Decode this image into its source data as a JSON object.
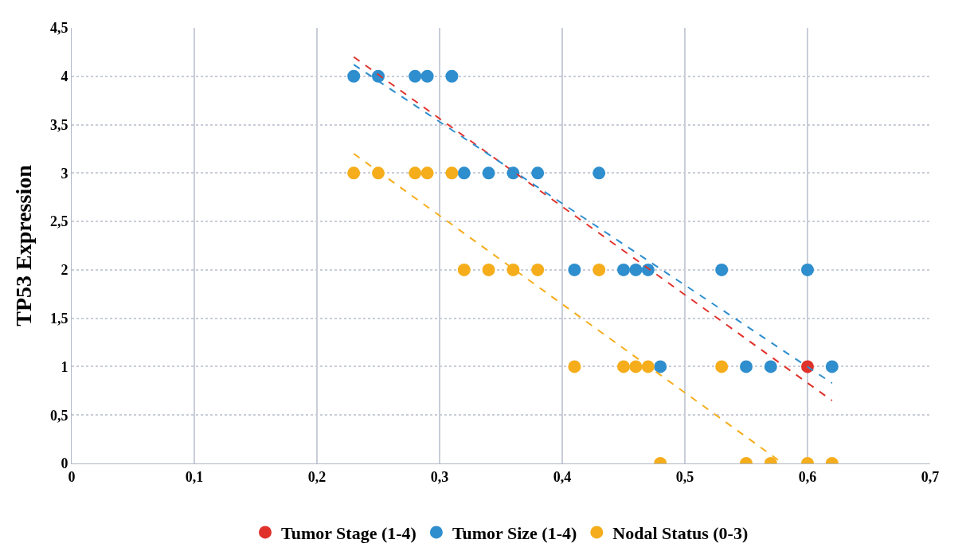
{
  "chart_data": {
    "type": "scatter",
    "ylabel": "TP53 Expression",
    "marker": "circle",
    "grid": true,
    "legend": "bottom",
    "xlim": [
      0,
      0.7
    ],
    "xticks": [
      0,
      {
        "value": 0.1,
        "label": "0,1"
      },
      {
        "value": 0.2,
        "label": "0,2"
      },
      {
        "value": 0.3,
        "label": "0,3"
      },
      {
        "value": 0.4,
        "label": "0,4"
      },
      {
        "value": 0.5,
        "label": "0,5"
      },
      {
        "value": 0.6,
        "label": "0,6"
      },
      {
        "value": 0.7,
        "label": "0,7"
      }
    ],
    "ylim": [
      0,
      4.5
    ],
    "yticks": [
      0,
      {
        "value": 0.5,
        "label": "0,5"
      },
      1,
      {
        "value": 1.5,
        "label": "1,5"
      },
      2,
      {
        "value": 2.5,
        "label": "2,5"
      },
      3,
      {
        "value": 3.5,
        "label": "3,5"
      },
      4,
      {
        "value": 4.5,
        "label": "4,5"
      }
    ],
    "series": [
      {
        "name": "Tumor Stage (1-4)",
        "color": "#e0312b",
        "x": [
          0.6
        ],
        "values": [
          1
        ]
      },
      {
        "name": "Tumor Size (1-4)",
        "color": "#2e8ece",
        "x": [
          0.23,
          0.25,
          0.28,
          0.29,
          0.31,
          0.32,
          0.34,
          0.36,
          0.38,
          0.43,
          0.41,
          0.45,
          0.46,
          0.47,
          0.53,
          0.6,
          0.48,
          0.55,
          0.57,
          0.62
        ],
        "values": [
          4,
          4,
          4,
          4,
          4,
          3,
          3,
          3,
          3,
          3,
          2,
          2,
          2,
          2,
          2,
          2,
          1,
          1,
          1,
          1
        ]
      },
      {
        "name": "Nodal Status (0-3)",
        "color": "#f5ad1b",
        "x": [
          0.23,
          0.25,
          0.28,
          0.29,
          0.31,
          0.32,
          0.34,
          0.36,
          0.38,
          0.43,
          0.41,
          0.45,
          0.46,
          0.47,
          0.53,
          0.48,
          0.55,
          0.57,
          0.6,
          0.62
        ],
        "values": [
          3,
          3,
          3,
          3,
          3,
          2,
          2,
          2,
          2,
          2,
          1,
          1,
          1,
          1,
          1,
          0,
          0,
          0,
          0,
          0
        ]
      },
      {
        "type": "line",
        "marker": "none",
        "color": "#e0312b",
        "line_style": "dashed",
        "x": [
          0.23,
          0.62
        ],
        "values": [
          4.2,
          0.65
        ]
      },
      {
        "type": "line",
        "marker": "none",
        "color": "#2e8ece",
        "line_style": "dashed",
        "x": [
          0.23,
          0.62
        ],
        "values": [
          4.12,
          0.83
        ]
      },
      {
        "type": "line",
        "marker": "none",
        "color": "#f5ad1b",
        "line_style": "dashed",
        "x": [
          0.23,
          0.58
        ],
        "values": [
          3.2,
          0
        ]
      }
    ]
  }
}
